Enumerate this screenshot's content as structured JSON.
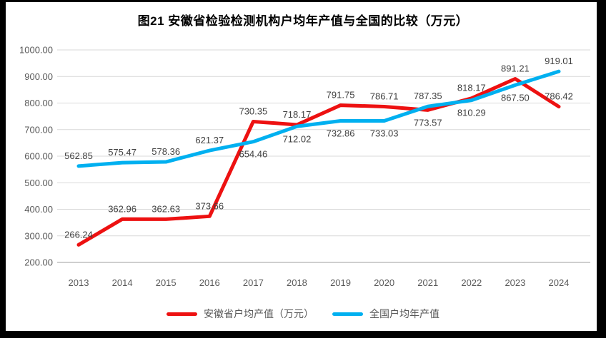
{
  "chart_data": {
    "type": "line",
    "title": "图21 安徽省检验检测机构户均年产值与全国的比较（万元）",
    "categories": [
      "2013",
      "2014",
      "2015",
      "2016",
      "2017",
      "2018",
      "2019",
      "2020",
      "2021",
      "2022",
      "2023",
      "2024"
    ],
    "series": [
      {
        "name": "安徽省户均产值（万元）",
        "color": "#ED1111",
        "values": [
          266.24,
          362.96,
          362.63,
          373.66,
          730.35,
          718.17,
          791.75,
          786.71,
          773.57,
          818.17,
          891.21,
          786.42
        ],
        "label_positions": [
          "above",
          "above",
          "above",
          "above",
          "above",
          "above",
          "above",
          "above",
          "below",
          "above",
          "above",
          "above"
        ]
      },
      {
        "name": "全国户均年产值",
        "color": "#00B0F0",
        "values": [
          562.85,
          575.47,
          578.36,
          621.37,
          654.46,
          712.02,
          732.86,
          733.03,
          787.35,
          810.29,
          867.5,
          919.01
        ],
        "label_positions": [
          "above",
          "above",
          "above",
          "above",
          "below",
          "below",
          "below",
          "below",
          "above",
          "below",
          "below",
          "above"
        ]
      }
    ],
    "ylim": [
      200,
      1000
    ],
    "ytick_step": 100,
    "ytick_labels": [
      "200.00",
      "300.00",
      "400.00",
      "500.00",
      "600.00",
      "700.00",
      "800.00",
      "900.00",
      "1000.00"
    ],
    "value_decimals": 2,
    "grid": true,
    "legend_position": "bottom",
    "colors": {
      "gridline": "#D9D9D9",
      "axis_line": "#BFBFBF",
      "tick_text": "#595959",
      "data_label_text": "#404040",
      "title_text": "#000000",
      "frame": "#000000",
      "background": "#FFFFFF"
    }
  }
}
